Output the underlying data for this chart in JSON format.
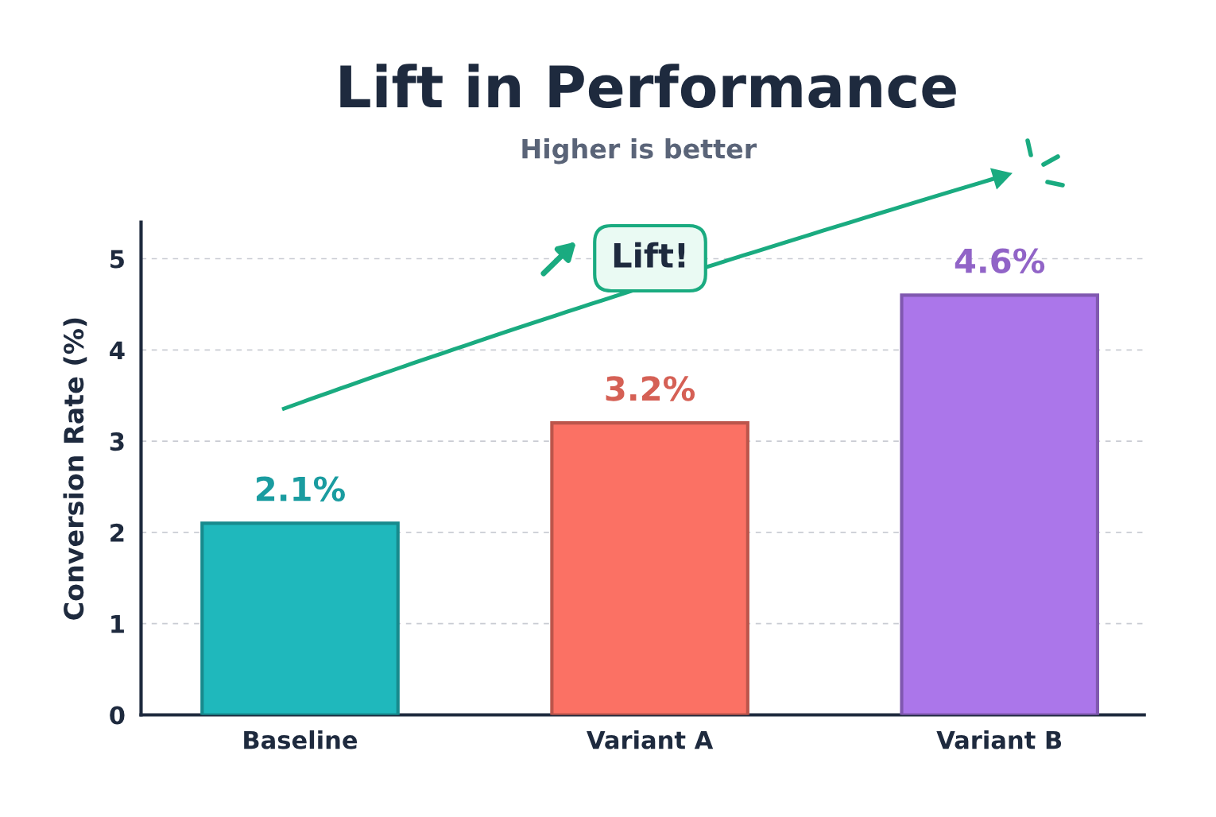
{
  "chart_data": {
    "type": "bar",
    "title": "Lift in Performance",
    "subtitle": "Higher is better",
    "ylabel": "Conversion Rate (%)",
    "categories": [
      "Baseline",
      "Variant A",
      "Variant B"
    ],
    "values": [
      2.1,
      3.2,
      4.6
    ],
    "value_labels": [
      "2.1%",
      "3.2%",
      "4.6%"
    ],
    "colors": [
      "#1fb8bc",
      "#fb7164",
      "#ab76ea"
    ],
    "ylim": [
      0,
      5.4
    ],
    "yticks": [
      0,
      1,
      2,
      3,
      4,
      5
    ],
    "grid": "y",
    "annotations": [
      "Lift!"
    ]
  }
}
